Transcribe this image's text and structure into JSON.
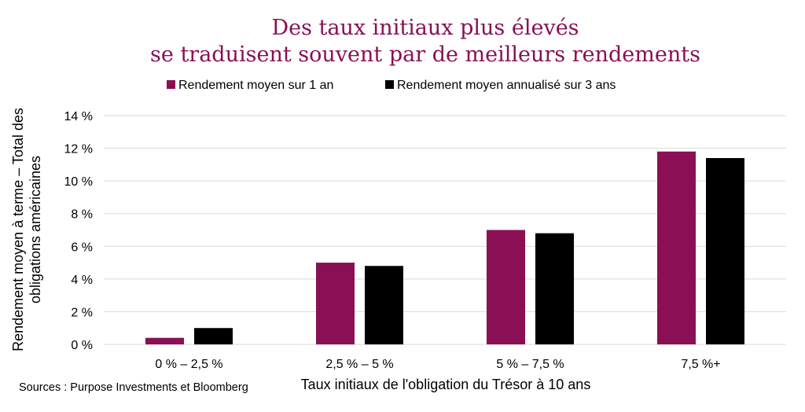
{
  "chart_data": {
    "type": "bar",
    "title": [
      "Des taux initiaux plus élevés",
      "se traduisent souvent par de meilleurs rendements"
    ],
    "xlabel": "Taux initiaux de l'obligation du Trésor à 10 ans",
    "ylabel": [
      "Rendement moyen à terme –  Total des",
      "obligations américaines"
    ],
    "categories": [
      "0 % – 2,5 %",
      "2,5 % – 5 %",
      "5 % – 7,5 %",
      "7,5 %+"
    ],
    "series": [
      {
        "name": "Rendement moyen sur 1 an",
        "values": [
          0.4,
          5.0,
          7.0,
          11.8
        ],
        "color": "#8a0f55"
      },
      {
        "name": "Rendement moyen annualisé sur 3 ans",
        "values": [
          1.0,
          4.8,
          6.8,
          11.4
        ],
        "color": "#000000"
      }
    ],
    "ylim": [
      0,
      14
    ],
    "yticks": [
      0,
      2,
      4,
      6,
      8,
      10,
      12,
      14
    ],
    "ytick_labels": [
      "0 %",
      "2 %",
      "4 %",
      "6 %",
      "8 %",
      "10 %",
      "12 %",
      "14 %"
    ],
    "grid": true,
    "legend_position": "top",
    "title_color": "#8a0f55"
  },
  "source": "Sources : Purpose Investments et Bloomberg"
}
